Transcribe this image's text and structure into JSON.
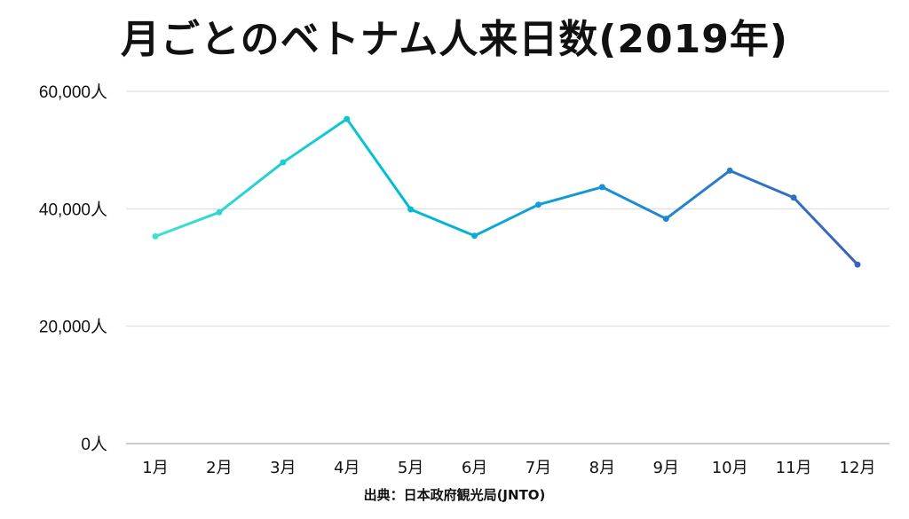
{
  "title": "月ごとのベトナム人来日数(2019年)",
  "source": "出典：日本政府観光局(JNTO)",
  "chart_data": {
    "type": "line",
    "title": "月ごとのベトナム人来日数(2019年)",
    "categories": [
      "1月",
      "2月",
      "3月",
      "4月",
      "5月",
      "6月",
      "7月",
      "8月",
      "9月",
      "10月",
      "11月",
      "12月"
    ],
    "values": [
      35300,
      39400,
      47900,
      55300,
      39900,
      35400,
      40700,
      43700,
      38300,
      46500,
      41900,
      30500
    ],
    "ylim": [
      0,
      60000
    ],
    "yticks": [
      0,
      20000,
      40000,
      60000
    ],
    "ytick_labels": [
      "0人",
      "20,000人",
      "40,000人",
      "60,000人"
    ],
    "grid": true,
    "line_gradient": [
      "#40e0d0",
      "#00bcd4",
      "#1a8fd6",
      "#3a63b8"
    ]
  }
}
